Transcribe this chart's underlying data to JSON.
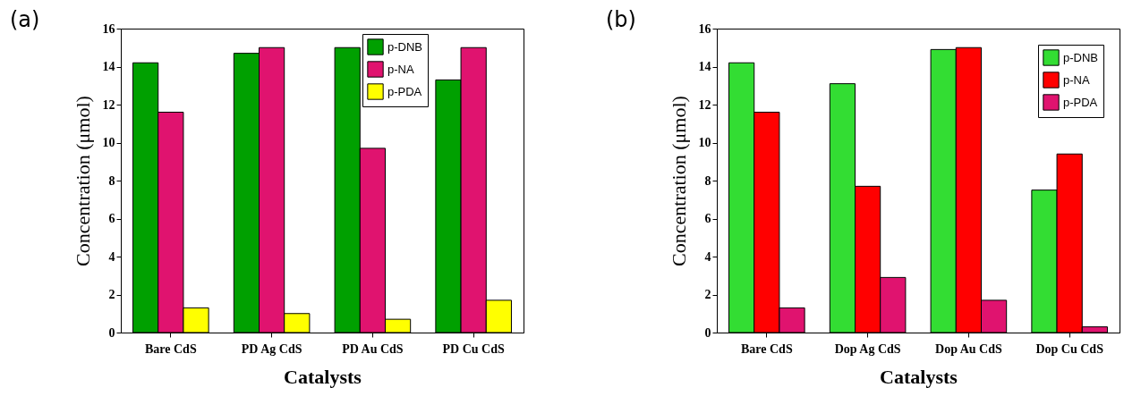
{
  "chart_data": [
    {
      "type": "bar",
      "title": "(a)",
      "xlabel": "Catalysts",
      "ylabel": "Concentration (μmol)",
      "categories": [
        "Bare CdS",
        "PD Ag CdS",
        "PD Au CdS",
        "PD Cu CdS"
      ],
      "series": [
        {
          "name": "p-DNB",
          "color": "#00a000",
          "values": [
            14.2,
            14.7,
            15.0,
            13.3
          ]
        },
        {
          "name": "p-NA",
          "color": "#e0136f",
          "values": [
            11.6,
            15.0,
            9.7,
            15.0
          ]
        },
        {
          "name": "p-PDA",
          "color": "#ffff00",
          "values": [
            1.3,
            1.0,
            0.7,
            1.7
          ]
        }
      ],
      "ylim": [
        0,
        16
      ],
      "yticks": [
        0,
        2,
        4,
        6,
        8,
        10,
        12,
        14,
        16
      ],
      "legend": "top right"
    },
    {
      "type": "bar",
      "title": "(b)",
      "xlabel": "Catalysts",
      "ylabel": "Concentration (μmol)",
      "categories": [
        "Bare CdS",
        "Dop Ag CdS",
        "Dop Au CdS",
        "Dop Cu CdS"
      ],
      "series": [
        {
          "name": "p-DNB",
          "color": "#33dd33",
          "values": [
            14.2,
            13.1,
            14.9,
            7.5
          ]
        },
        {
          "name": "p-NA",
          "color": "#ff0000",
          "values": [
            11.6,
            7.7,
            15.0,
            9.4
          ]
        },
        {
          "name": "p-PDA",
          "color": "#e0136f",
          "values": [
            1.3,
            2.9,
            1.7,
            0.3
          ]
        }
      ],
      "ylim": [
        0,
        16
      ],
      "yticks": [
        0,
        2,
        4,
        6,
        8,
        10,
        12,
        14,
        16
      ],
      "legend": "top right"
    }
  ]
}
